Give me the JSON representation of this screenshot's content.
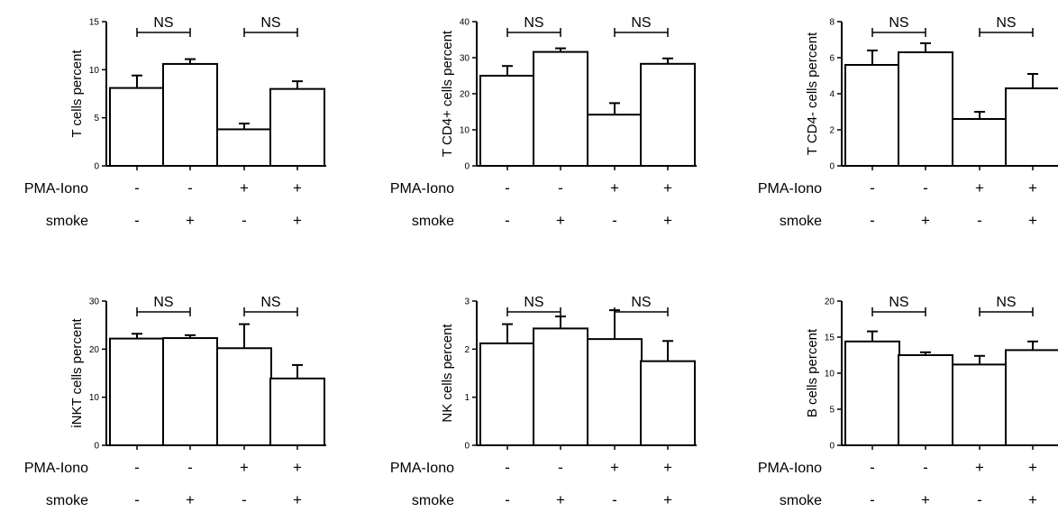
{
  "figure": {
    "conditions": [
      {
        "label": "PMA-Iono",
        "signs": [
          "-",
          "-",
          "+",
          "+"
        ]
      },
      {
        "label": "smoke",
        "signs": [
          "-",
          "+",
          "-",
          "+"
        ]
      }
    ]
  },
  "chart_data": [
    {
      "type": "bar",
      "ylabel": "T cells percent",
      "ylim": [
        0,
        15
      ],
      "yticks": [
        "0",
        "5",
        "10",
        "15"
      ],
      "values": [
        8.1,
        10.6,
        3.8,
        8.0
      ],
      "errors": [
        1.3,
        0.5,
        0.6,
        0.8
      ],
      "annotations": [
        {
          "text": "NS",
          "groups": [
            0,
            1
          ]
        },
        {
          "text": "NS",
          "groups": [
            2,
            3
          ]
        }
      ]
    },
    {
      "type": "bar",
      "ylabel": "T CD4+ cells percent",
      "ylim": [
        0,
        40
      ],
      "yticks": [
        "0",
        "10",
        "20",
        "30",
        "40"
      ],
      "values": [
        25.0,
        31.6,
        14.2,
        28.3
      ],
      "errors": [
        2.7,
        1.0,
        3.2,
        1.5
      ],
      "annotations": [
        {
          "text": "NS",
          "groups": [
            0,
            1
          ]
        },
        {
          "text": "NS",
          "groups": [
            2,
            3
          ]
        }
      ]
    },
    {
      "type": "bar",
      "ylabel": "T CD4- cells percent",
      "ylim": [
        0,
        8
      ],
      "yticks": [
        "0",
        "2",
        "4",
        "6",
        "8"
      ],
      "values": [
        5.6,
        6.3,
        2.6,
        4.3
      ],
      "errors": [
        0.8,
        0.5,
        0.4,
        0.8
      ],
      "annotations": [
        {
          "text": "NS",
          "groups": [
            0,
            1
          ]
        },
        {
          "text": "NS",
          "groups": [
            2,
            3
          ]
        }
      ]
    },
    {
      "type": "bar",
      "ylabel": "iNKT cells percent",
      "ylim": [
        0,
        30
      ],
      "yticks": [
        "0",
        "10",
        "20",
        "30"
      ],
      "values": [
        22.2,
        22.3,
        20.2,
        13.9
      ],
      "errors": [
        1.0,
        0.6,
        5.0,
        2.8
      ],
      "annotations": [
        {
          "text": "NS",
          "groups": [
            0,
            1
          ]
        },
        {
          "text": "NS",
          "groups": [
            2,
            3
          ]
        }
      ]
    },
    {
      "type": "bar",
      "ylabel": "NK cells percent",
      "ylim": [
        0,
        3
      ],
      "yticks": [
        "0",
        "1",
        "2",
        "3"
      ],
      "values": [
        2.12,
        2.43,
        2.21,
        1.75
      ],
      "errors": [
        0.4,
        0.25,
        0.6,
        0.42
      ],
      "annotations": [
        {
          "text": "NS",
          "groups": [
            0,
            1
          ]
        },
        {
          "text": "NS",
          "groups": [
            2,
            3
          ]
        }
      ]
    },
    {
      "type": "bar",
      "ylabel": "B cells percent",
      "ylim": [
        0,
        20
      ],
      "yticks": [
        "0",
        "5",
        "10",
        "15",
        "20"
      ],
      "values": [
        14.4,
        12.5,
        11.2,
        13.2
      ],
      "errors": [
        1.4,
        0.4,
        1.2,
        1.2
      ],
      "annotations": [
        {
          "text": "NS",
          "groups": [
            0,
            1
          ]
        },
        {
          "text": "NS",
          "groups": [
            2,
            3
          ]
        }
      ]
    }
  ]
}
